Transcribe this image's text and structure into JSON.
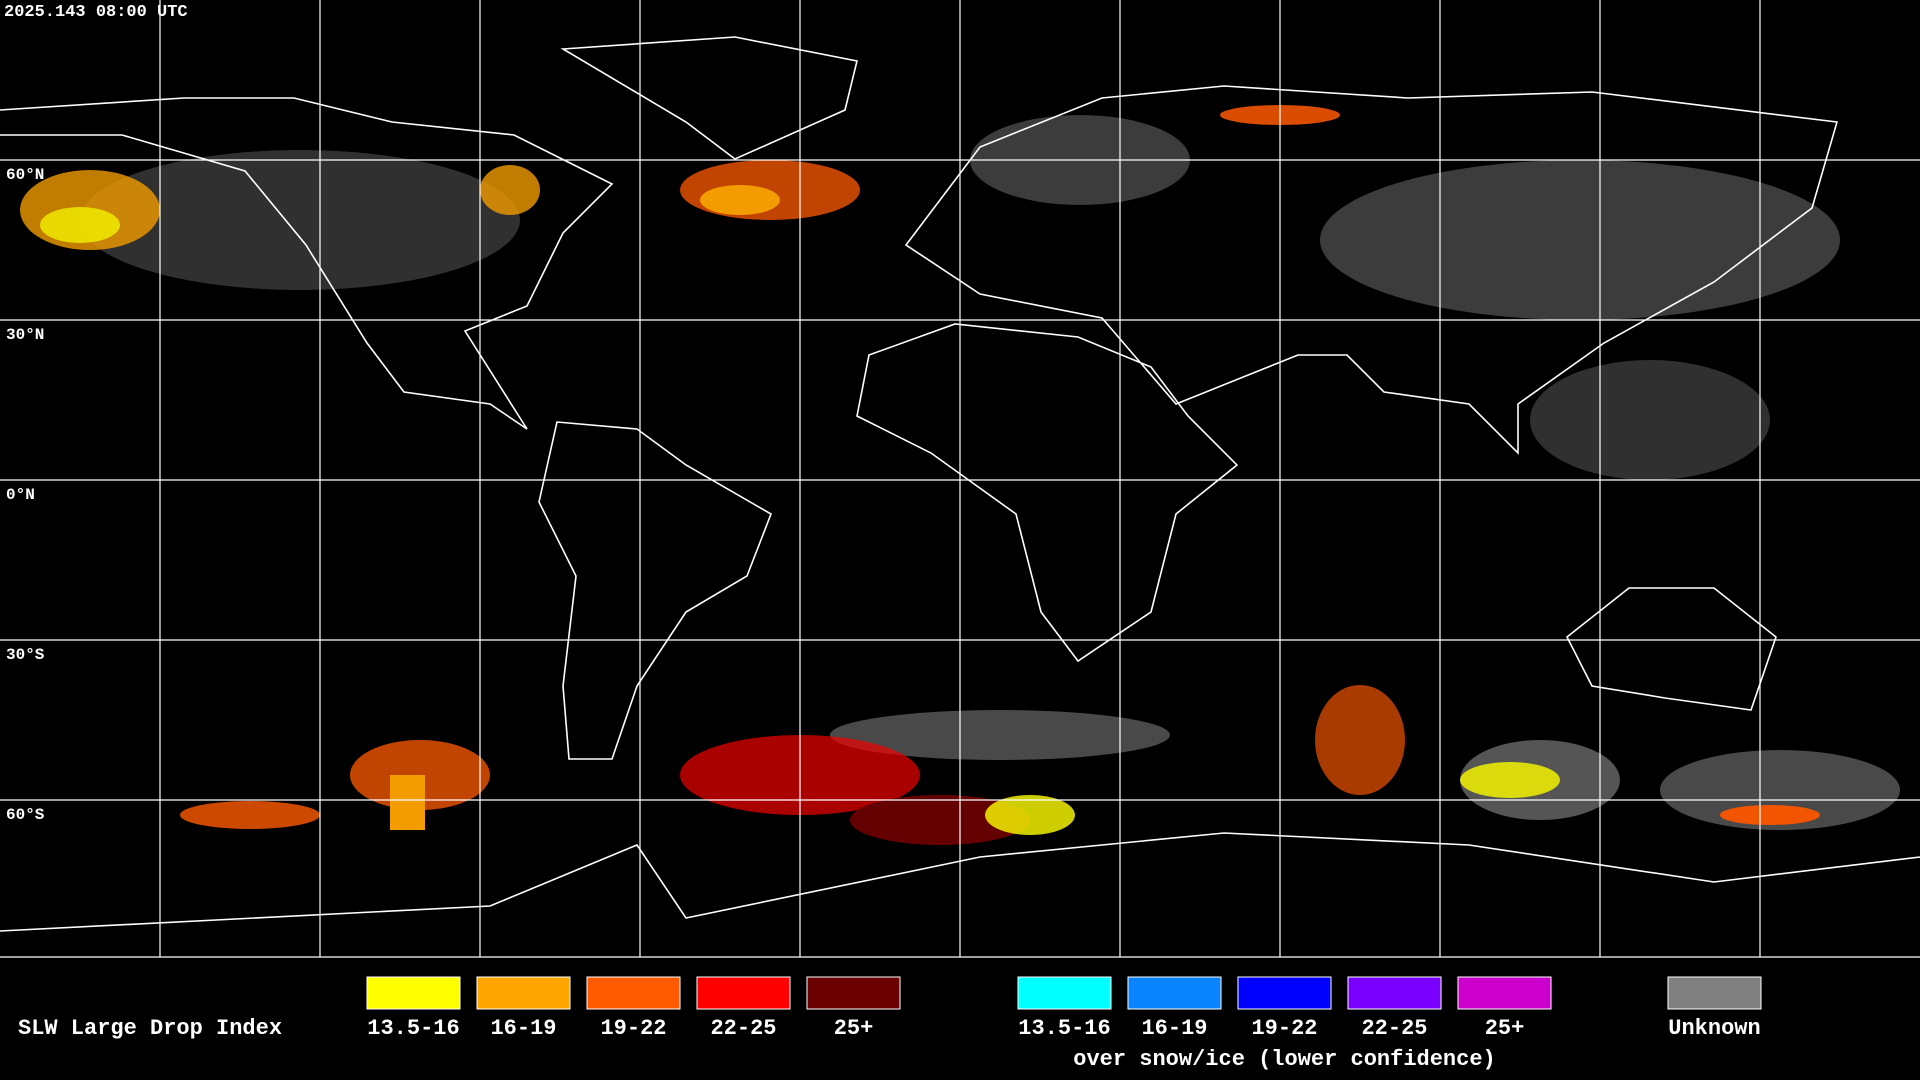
{
  "timestamp": "2025.143 08:00 UTC",
  "latitude_labels": [
    "60°N",
    "30°N",
    "0°N",
    "30°S",
    "60°S"
  ],
  "legend": {
    "title": "SLW Large Drop Index",
    "groups": [
      {
        "items": [
          {
            "label": "13.5-16",
            "color": "#ffff00"
          },
          {
            "label": "16-19",
            "color": "#ffa500"
          },
          {
            "label": "19-22",
            "color": "#ff5a00"
          },
          {
            "label": "22-25",
            "color": "#ff0000"
          },
          {
            "label": "25+",
            "color": "#6b0000"
          }
        ]
      },
      {
        "items": [
          {
            "label": "13.5-16",
            "color": "#00ffff"
          },
          {
            "label": "16-19",
            "color": "#0a84ff"
          },
          {
            "label": "19-22",
            "color": "#0000ff"
          },
          {
            "label": "22-25",
            "color": "#7a00ff"
          },
          {
            "label": "25+",
            "color": "#cc00cc"
          }
        ],
        "caption": "over snow/ice (lower confidence)"
      }
    ],
    "unknown": {
      "label": "Unknown",
      "color": "#808080"
    }
  }
}
